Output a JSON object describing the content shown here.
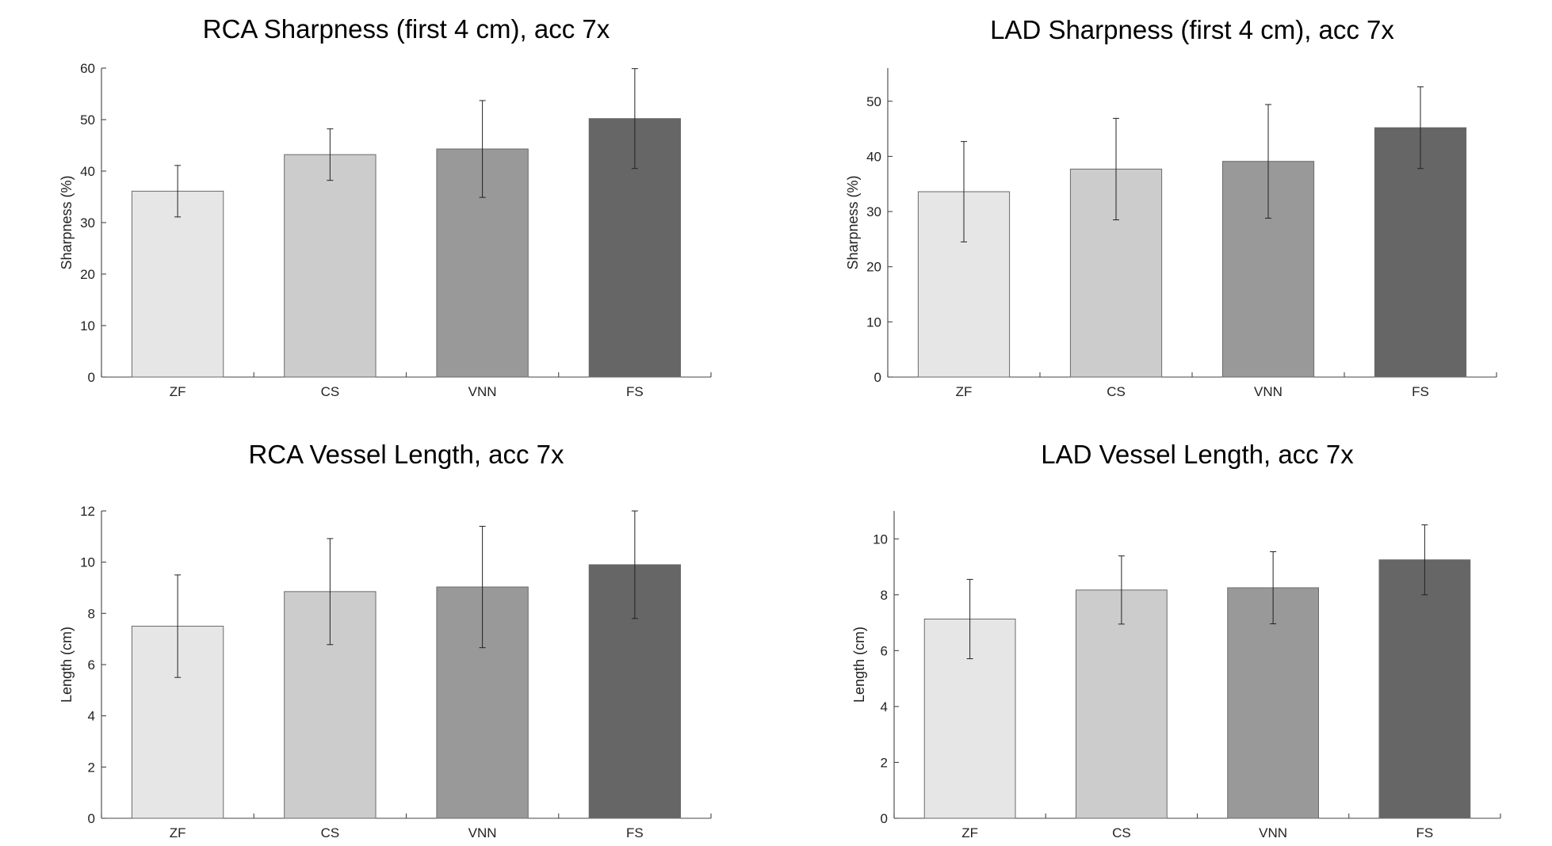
{
  "chart_data": [
    {
      "type": "bar",
      "title": "RCA Sharpness (first 4 cm), acc 7x",
      "xlabel": "",
      "ylabel": "Sharpness (%)",
      "categories": [
        "ZF",
        "CS",
        "VNN",
        "FS"
      ],
      "values": [
        36.1,
        43.2,
        44.3,
        50.2
      ],
      "errors": [
        5.0,
        5.0,
        9.4,
        9.7
      ],
      "colors": [
        "#e6e6e6",
        "#cccccc",
        "#999999",
        "#666666"
      ],
      "ylim": [
        0,
        60
      ],
      "yticks": [
        0,
        10,
        20,
        30,
        40,
        50,
        60
      ],
      "ytick_labels": [
        "0",
        "10",
        "20",
        "30",
        "40",
        "50",
        "60"
      ]
    },
    {
      "type": "bar",
      "title": "LAD Sharpness (first 4 cm), acc 7x",
      "xlabel": "",
      "ylabel": "Sharpness (%)",
      "categories": [
        "ZF",
        "CS",
        "VNN",
        "FS"
      ],
      "values": [
        33.6,
        37.7,
        39.1,
        45.2
      ],
      "errors": [
        9.1,
        9.2,
        10.3,
        7.4
      ],
      "colors": [
        "#e6e6e6",
        "#cccccc",
        "#999999",
        "#666666"
      ],
      "ylim": [
        0,
        56
      ],
      "yticks": [
        0,
        10,
        20,
        30,
        40,
        50
      ],
      "ytick_labels": [
        "0",
        "10",
        "20",
        "30",
        "40",
        "50"
      ]
    },
    {
      "type": "bar",
      "title": "RCA Vessel Length, acc 7x",
      "xlabel": "",
      "ylabel": "Length (cm)",
      "categories": [
        "ZF",
        "CS",
        "VNN",
        "FS"
      ],
      "values": [
        7.5,
        8.85,
        9.03,
        9.9
      ],
      "errors": [
        2.0,
        2.07,
        2.37,
        2.1
      ],
      "colors": [
        "#e6e6e6",
        "#cccccc",
        "#999999",
        "#666666"
      ],
      "ylim": [
        0,
        12
      ],
      "yticks": [
        0,
        2,
        4,
        6,
        8,
        10,
        12
      ],
      "ytick_labels": [
        "0",
        "2",
        "4",
        "6",
        "8",
        "10",
        "12"
      ]
    },
    {
      "type": "bar",
      "title": "LAD Vessel Length, acc 7x",
      "xlabel": "",
      "ylabel": "Length (cm)",
      "categories": [
        "ZF",
        "CS",
        "VNN",
        "FS"
      ],
      "values": [
        7.13,
        8.17,
        8.25,
        9.25
      ],
      "errors": [
        1.42,
        1.22,
        1.29,
        1.25
      ],
      "colors": [
        "#e6e6e6",
        "#cccccc",
        "#999999",
        "#666666"
      ],
      "ylim": [
        0,
        11
      ],
      "yticks": [
        0,
        2,
        4,
        6,
        8,
        10
      ],
      "ytick_labels": [
        "0",
        "2",
        "4",
        "6",
        "8",
        "10"
      ]
    }
  ]
}
